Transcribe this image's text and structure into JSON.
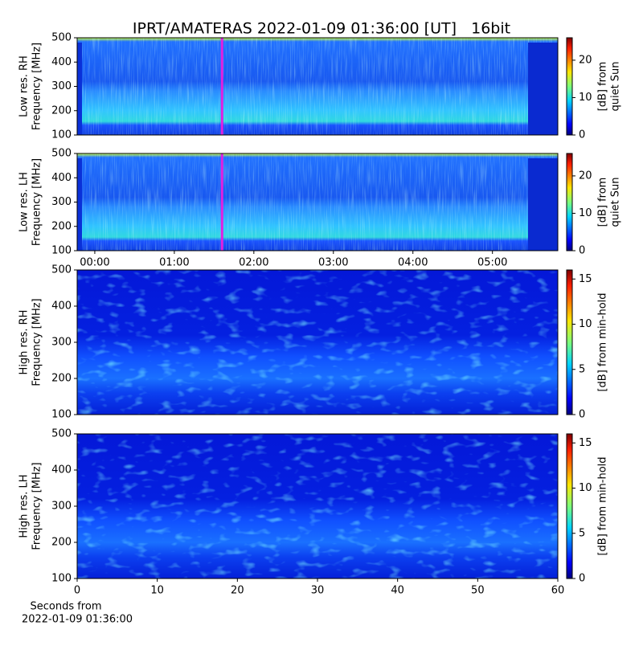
{
  "chart_data": [
    {
      "type": "heatmap",
      "title": "IPRT/AMATERAS 2022-01-09 01:36:00 [UT]   16bit",
      "ylabel": [
        "Low res. RH",
        "Frequency [MHz]"
      ],
      "ylim": [
        100,
        500
      ],
      "yticks": [
        100,
        200,
        300,
        400,
        500
      ],
      "xlim": [
        -13.3,
        349.3
      ],
      "marker_x": 96,
      "marker_color": "#e020e0",
      "colormap": "jet",
      "colorbar": {
        "label": [
          "[dB] from",
          "quiet Sun"
        ],
        "lim": [
          0,
          26
        ],
        "ticks": [
          0,
          10,
          20
        ]
      }
    },
    {
      "type": "heatmap",
      "ylabel": [
        "Low res. LH",
        "Frequency [MHz]"
      ],
      "ylim": [
        100,
        500
      ],
      "yticks": [
        100,
        200,
        300,
        400,
        500
      ],
      "xlim": [
        -13.3,
        349.3
      ],
      "xticks": [
        {
          "value": 0,
          "label": "00:00"
        },
        {
          "value": 60,
          "label": "01:00"
        },
        {
          "value": 120,
          "label": "02:00"
        },
        {
          "value": 180,
          "label": "03:00"
        },
        {
          "value": 240,
          "label": "04:00"
        },
        {
          "value": 300,
          "label": "05:00"
        }
      ],
      "marker_x": 96,
      "marker_color": "#e020e0",
      "colormap": "jet",
      "colorbar": {
        "label": [
          "[dB] from",
          "quiet Sun"
        ],
        "lim": [
          0,
          26
        ],
        "ticks": [
          0,
          10,
          20
        ]
      }
    },
    {
      "type": "heatmap",
      "ylabel": [
        "High res. RH",
        "Frequency [MHz]"
      ],
      "ylim": [
        100,
        500
      ],
      "yticks": [
        100,
        200,
        300,
        400,
        500
      ],
      "xlim": [
        0,
        60
      ],
      "colormap": "jet",
      "colorbar": {
        "label": [
          "[dB] from min-hold"
        ],
        "lim": [
          0,
          16
        ],
        "ticks": [
          0,
          5,
          10,
          15
        ]
      }
    },
    {
      "type": "heatmap",
      "ylabel": [
        "High res. LH",
        "Frequency [MHz]"
      ],
      "ylim": [
        100,
        500
      ],
      "yticks": [
        100,
        200,
        300,
        400,
        500
      ],
      "xlim": [
        0,
        60
      ],
      "xticks": [
        0,
        10,
        20,
        30,
        40,
        50,
        60
      ],
      "xlabel": [
        "Seconds from",
        "2022-01-09 01:36:00"
      ],
      "colormap": "jet",
      "colorbar": {
        "label": [
          "[dB] from min-hold"
        ],
        "lim": [
          0,
          16
        ],
        "ticks": [
          0,
          5,
          10,
          15
        ]
      }
    }
  ]
}
